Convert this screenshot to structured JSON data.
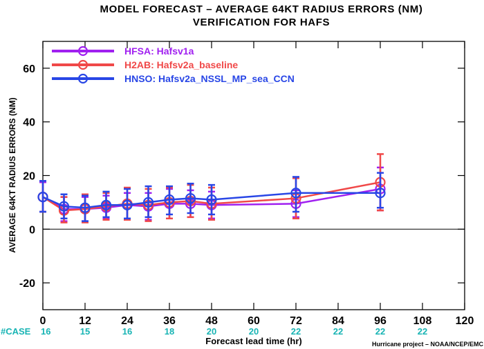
{
  "chart_data": {
    "type": "line",
    "title": "MODEL FORECAST – AVERAGE 64KT RADIUS ERRORS (NM)",
    "subtitle": "VERIFICATION FOR HAFS",
    "xlabel": "Forecast lead time (hr)",
    "ylabel": "AVERAGE 64KT RADIUS ERRORS (NM)",
    "xlim": [
      0,
      120
    ],
    "ylim": [
      -30,
      70
    ],
    "xticks": [
      0,
      12,
      24,
      36,
      48,
      60,
      72,
      84,
      96,
      108,
      120
    ],
    "yticks": [
      -20,
      0,
      20,
      40,
      60
    ],
    "grid": false,
    "zero_line": true,
    "legend_position": "top-left",
    "x": [
      0,
      6,
      12,
      18,
      24,
      30,
      36,
      42,
      48,
      72,
      96
    ],
    "series": [
      {
        "name": "HFSA: Hafsv1a",
        "color": "#a020f0",
        "values": [
          12,
          7.5,
          7.5,
          8,
          9,
          8.5,
          9.5,
          9.5,
          9,
          9.5,
          15
        ],
        "error_low": [
          6.5,
          3,
          3,
          4,
          4,
          3.5,
          4,
          4.5,
          4,
          4.5,
          7
        ],
        "error_high": [
          17.5,
          12,
          12,
          12.5,
          13.5,
          13.5,
          15,
          14.5,
          14,
          14.5,
          23
        ]
      },
      {
        "name": "H2AB: Hafsv2a_baseline",
        "color": "#f04848",
        "values": [
          12,
          7,
          7.5,
          8.5,
          9.5,
          9,
          10,
          10.5,
          9.5,
          11.5,
          17.5
        ],
        "error_low": [
          6.5,
          2.5,
          2.5,
          3.5,
          3.5,
          3,
          4,
          4.5,
          3.5,
          4,
          7
        ],
        "error_high": [
          18,
          12,
          13,
          13.5,
          15.5,
          15,
          15.5,
          16.5,
          15.5,
          19,
          28
        ]
      },
      {
        "name": "HNSO: Hafsv2a_NSSL_MP_sea_CCN",
        "color": "#2846e6",
        "values": [
          12,
          8.5,
          8,
          9,
          9,
          10,
          11,
          11.5,
          11,
          13.5,
          13.5
        ],
        "error_low": [
          6.5,
          4,
          3,
          4.5,
          4,
          4.5,
          5.5,
          6,
          5.5,
          6.5,
          8
        ],
        "error_high": [
          18,
          13,
          12.5,
          14,
          15,
          16,
          16,
          17,
          16.5,
          19.5,
          21
        ]
      }
    ],
    "cases": {
      "label": "#CASE",
      "color": "#18b4b4",
      "hours": [
        0,
        12,
        24,
        36,
        48,
        60,
        72,
        84,
        96,
        108
      ],
      "counts": [
        "16",
        "15",
        "16",
        "18",
        "20",
        "20",
        "22",
        "22",
        "22",
        "22"
      ]
    },
    "credit": "Hurricane project – NOAA/NCEP/EMC"
  }
}
